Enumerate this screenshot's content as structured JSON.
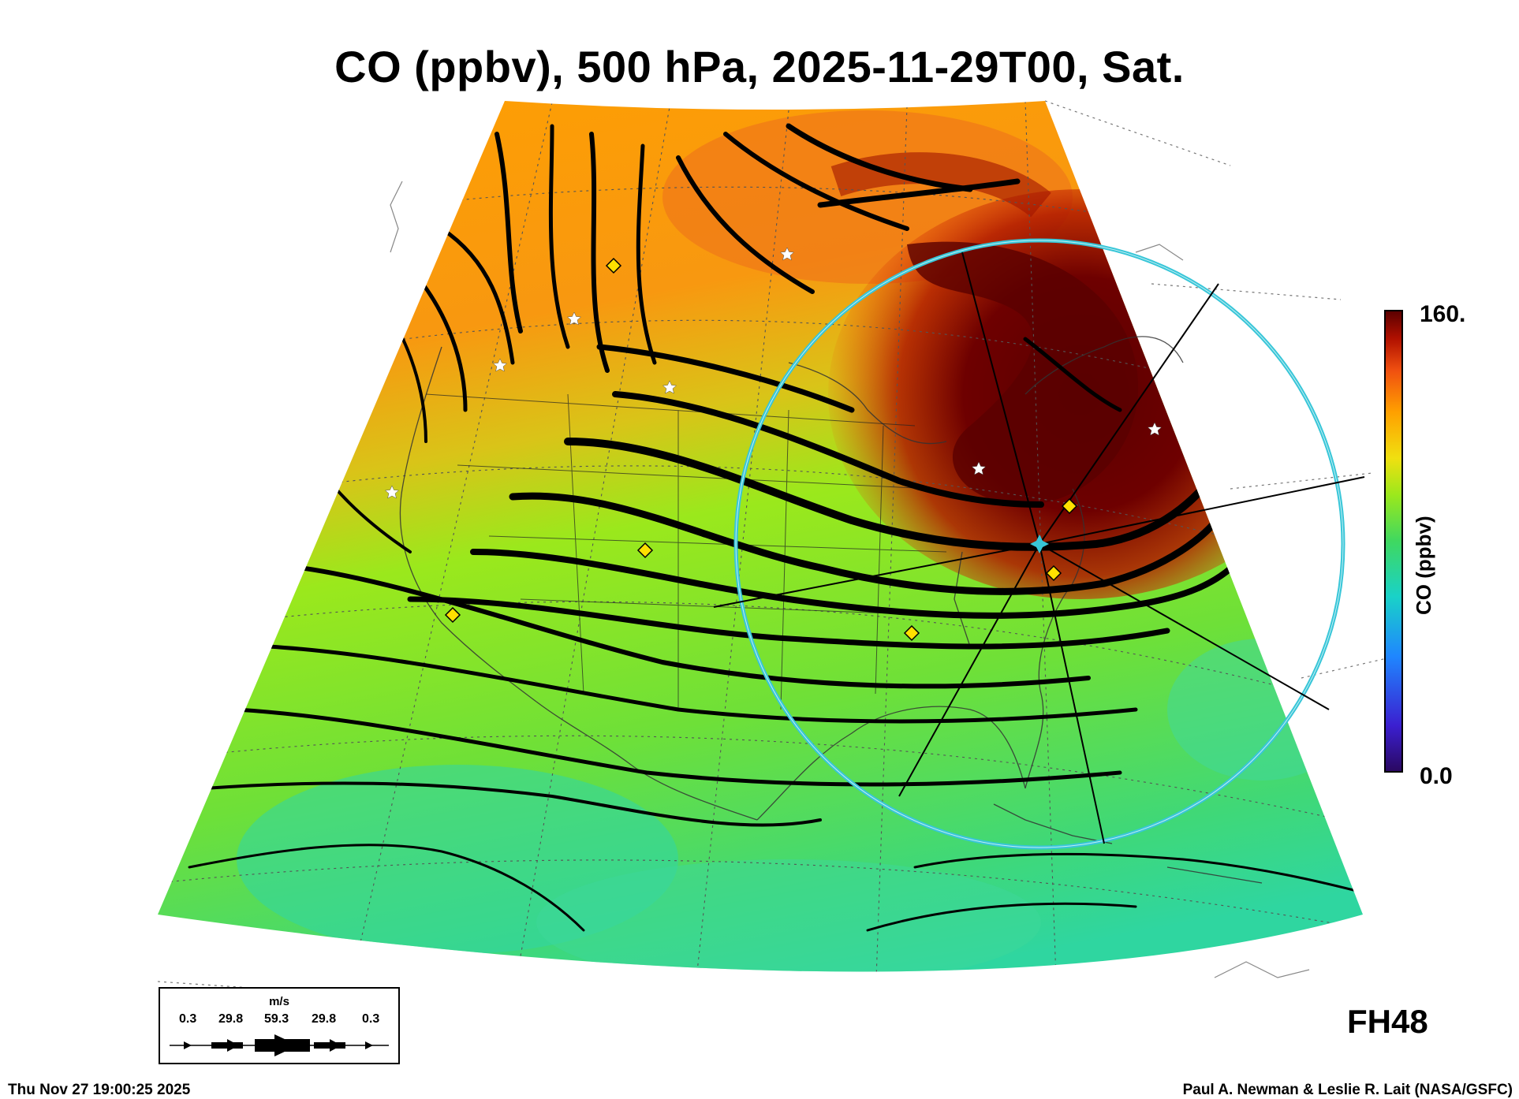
{
  "title": "CO (ppbv), 500 hPa, 2025-11-29T00, Sat.",
  "colorbar": {
    "max_label": "160.",
    "min_label": "0.0",
    "axis_label": "CO (ppbv)",
    "range": [
      0.0,
      160.0
    ],
    "colors": [
      "#2a0860",
      "#3b1fd0",
      "#1f86ff",
      "#19d2c8",
      "#3fd860",
      "#9be81c",
      "#f0e010",
      "#ffa000",
      "#f05010",
      "#b01000",
      "#5a0000"
    ]
  },
  "forecast_hour_label": "FH48",
  "wind_legend": {
    "unit": "m/s",
    "values": [
      "0.3",
      "29.8",
      "59.3",
      "29.8",
      "0.3"
    ]
  },
  "footer": {
    "timestamp": "Thu Nov 27 19:00:25 2025",
    "credit": "Paul A. Newman & Leslie R. Lait (NASA/GSFC)"
  },
  "map": {
    "projection": "polar-stereographic-sector",
    "features": [
      "co-field",
      "wind-streamlines",
      "coastlines",
      "state-boundaries",
      "lat-lon-grid",
      "range-ring",
      "flight-track-lines",
      "station-stars",
      "site-diamonds"
    ],
    "colors": {
      "range_ring": "#38c6d8",
      "diamond_fill": "#ffe000",
      "star_fill": "#ffffff",
      "streamline": "#000000",
      "high_co": "#5a0000",
      "low_co": "#19d2c8"
    }
  }
}
